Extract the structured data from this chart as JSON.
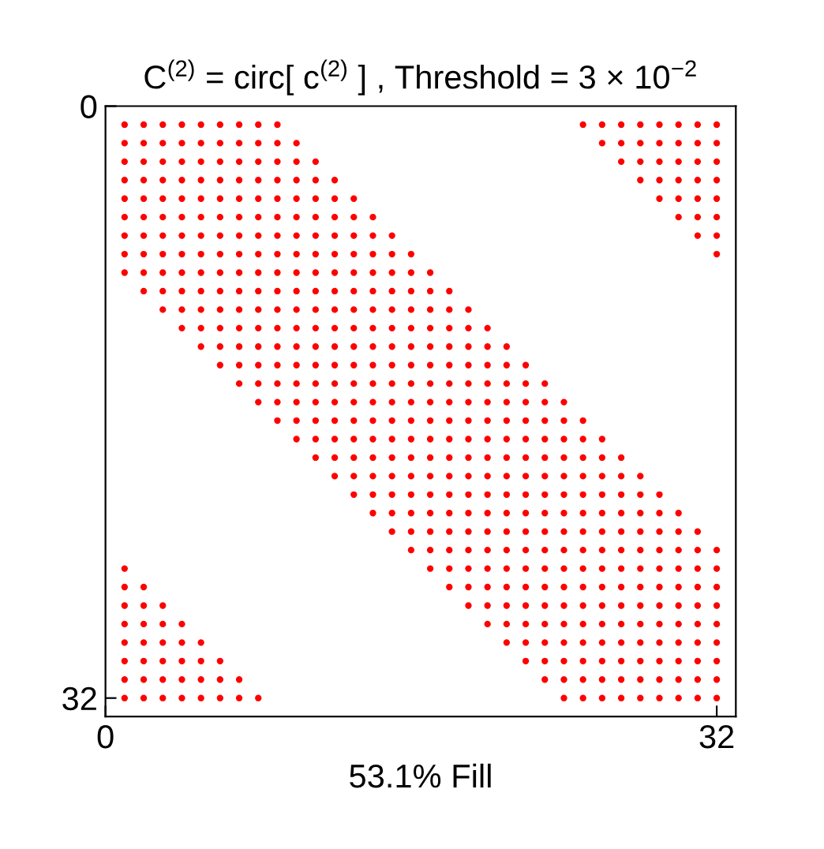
{
  "chart_data": {
    "type": "scatter",
    "title": "C$^{(2)}$ = circ[ c$^{(2)}$ ] , Threshold = 3 × 10$^{−2}$",
    "xlabel": "53.1% Fill",
    "xlim": [
      0,
      33
    ],
    "ylim": [
      33,
      0
    ],
    "xticks": [
      0,
      32
    ],
    "yticks": [
      0,
      32
    ],
    "grid": false,
    "legend": false,
    "marker": "circle",
    "series": [
      {
        "color": "#ff0000",
        "x": [
          1,
          2,
          3,
          4,
          5,
          6,
          7,
          8,
          9,
          25,
          26,
          27,
          28,
          29,
          30,
          31,
          32
        ],
        "values": [
          1,
          1,
          1,
          1,
          1,
          1,
          1,
          1,
          1,
          1,
          1,
          1,
          1,
          1,
          1,
          1,
          1
        ]
      },
      {
        "color": "#ff0000",
        "x": [
          1,
          2,
          3,
          4,
          5,
          6,
          7,
          8,
          9,
          10,
          26,
          27,
          28,
          29,
          30,
          31,
          32
        ],
        "values": [
          2,
          2,
          2,
          2,
          2,
          2,
          2,
          2,
          2,
          2,
          2,
          2,
          2,
          2,
          2,
          2,
          2
        ]
      },
      {
        "color": "#ff0000",
        "x": [
          1,
          2,
          3,
          4,
          5,
          6,
          7,
          8,
          9,
          10,
          11,
          27,
          28,
          29,
          30,
          31,
          32
        ],
        "values": [
          3,
          3,
          3,
          3,
          3,
          3,
          3,
          3,
          3,
          3,
          3,
          3,
          3,
          3,
          3,
          3,
          3
        ]
      },
      {
        "color": "#ff0000",
        "x": [
          1,
          2,
          3,
          4,
          5,
          6,
          7,
          8,
          9,
          10,
          11,
          12,
          28,
          29,
          30,
          31,
          32
        ],
        "values": [
          4,
          4,
          4,
          4,
          4,
          4,
          4,
          4,
          4,
          4,
          4,
          4,
          4,
          4,
          4,
          4,
          4
        ]
      },
      {
        "color": "#ff0000",
        "x": [
          1,
          2,
          3,
          4,
          5,
          6,
          7,
          8,
          9,
          10,
          11,
          12,
          13,
          29,
          30,
          31,
          32
        ],
        "values": [
          5,
          5,
          5,
          5,
          5,
          5,
          5,
          5,
          5,
          5,
          5,
          5,
          5,
          5,
          5,
          5,
          5
        ]
      },
      {
        "color": "#ff0000",
        "x": [
          1,
          2,
          3,
          4,
          5,
          6,
          7,
          8,
          9,
          10,
          11,
          12,
          13,
          14,
          30,
          31,
          32
        ],
        "values": [
          6,
          6,
          6,
          6,
          6,
          6,
          6,
          6,
          6,
          6,
          6,
          6,
          6,
          6,
          6,
          6,
          6
        ]
      },
      {
        "color": "#ff0000",
        "x": [
          1,
          2,
          3,
          4,
          5,
          6,
          7,
          8,
          9,
          10,
          11,
          12,
          13,
          14,
          15,
          31,
          32
        ],
        "values": [
          7,
          7,
          7,
          7,
          7,
          7,
          7,
          7,
          7,
          7,
          7,
          7,
          7,
          7,
          7,
          7,
          7
        ]
      },
      {
        "color": "#ff0000",
        "x": [
          1,
          2,
          3,
          4,
          5,
          6,
          7,
          8,
          9,
          10,
          11,
          12,
          13,
          14,
          15,
          16,
          32
        ],
        "values": [
          8,
          8,
          8,
          8,
          8,
          8,
          8,
          8,
          8,
          8,
          8,
          8,
          8,
          8,
          8,
          8,
          8
        ]
      },
      {
        "color": "#ff0000",
        "x": [
          1,
          2,
          3,
          4,
          5,
          6,
          7,
          8,
          9,
          10,
          11,
          12,
          13,
          14,
          15,
          16,
          17
        ],
        "values": [
          9,
          9,
          9,
          9,
          9,
          9,
          9,
          9,
          9,
          9,
          9,
          9,
          9,
          9,
          9,
          9,
          9
        ]
      },
      {
        "color": "#ff0000",
        "x": [
          2,
          3,
          4,
          5,
          6,
          7,
          8,
          9,
          10,
          11,
          12,
          13,
          14,
          15,
          16,
          17,
          18
        ],
        "values": [
          10,
          10,
          10,
          10,
          10,
          10,
          10,
          10,
          10,
          10,
          10,
          10,
          10,
          10,
          10,
          10,
          10
        ]
      },
      {
        "color": "#ff0000",
        "x": [
          3,
          4,
          5,
          6,
          7,
          8,
          9,
          10,
          11,
          12,
          13,
          14,
          15,
          16,
          17,
          18,
          19
        ],
        "values": [
          11,
          11,
          11,
          11,
          11,
          11,
          11,
          11,
          11,
          11,
          11,
          11,
          11,
          11,
          11,
          11,
          11
        ]
      },
      {
        "color": "#ff0000",
        "x": [
          4,
          5,
          6,
          7,
          8,
          9,
          10,
          11,
          12,
          13,
          14,
          15,
          16,
          17,
          18,
          19,
          20
        ],
        "values": [
          12,
          12,
          12,
          12,
          12,
          12,
          12,
          12,
          12,
          12,
          12,
          12,
          12,
          12,
          12,
          12,
          12
        ]
      },
      {
        "color": "#ff0000",
        "x": [
          5,
          6,
          7,
          8,
          9,
          10,
          11,
          12,
          13,
          14,
          15,
          16,
          17,
          18,
          19,
          20,
          21
        ],
        "values": [
          13,
          13,
          13,
          13,
          13,
          13,
          13,
          13,
          13,
          13,
          13,
          13,
          13,
          13,
          13,
          13,
          13
        ]
      },
      {
        "color": "#ff0000",
        "x": [
          6,
          7,
          8,
          9,
          10,
          11,
          12,
          13,
          14,
          15,
          16,
          17,
          18,
          19,
          20,
          21,
          22
        ],
        "values": [
          14,
          14,
          14,
          14,
          14,
          14,
          14,
          14,
          14,
          14,
          14,
          14,
          14,
          14,
          14,
          14,
          14
        ]
      },
      {
        "color": "#ff0000",
        "x": [
          7,
          8,
          9,
          10,
          11,
          12,
          13,
          14,
          15,
          16,
          17,
          18,
          19,
          20,
          21,
          22,
          23
        ],
        "values": [
          15,
          15,
          15,
          15,
          15,
          15,
          15,
          15,
          15,
          15,
          15,
          15,
          15,
          15,
          15,
          15,
          15
        ]
      },
      {
        "color": "#ff0000",
        "x": [
          8,
          9,
          10,
          11,
          12,
          13,
          14,
          15,
          16,
          17,
          18,
          19,
          20,
          21,
          22,
          23,
          24
        ],
        "values": [
          16,
          16,
          16,
          16,
          16,
          16,
          16,
          16,
          16,
          16,
          16,
          16,
          16,
          16,
          16,
          16,
          16
        ]
      },
      {
        "color": "#ff0000",
        "x": [
          9,
          10,
          11,
          12,
          13,
          14,
          15,
          16,
          17,
          18,
          19,
          20,
          21,
          22,
          23,
          24,
          25
        ],
        "values": [
          17,
          17,
          17,
          17,
          17,
          17,
          17,
          17,
          17,
          17,
          17,
          17,
          17,
          17,
          17,
          17,
          17
        ]
      },
      {
        "color": "#ff0000",
        "x": [
          10,
          11,
          12,
          13,
          14,
          15,
          16,
          17,
          18,
          19,
          20,
          21,
          22,
          23,
          24,
          25,
          26
        ],
        "values": [
          18,
          18,
          18,
          18,
          18,
          18,
          18,
          18,
          18,
          18,
          18,
          18,
          18,
          18,
          18,
          18,
          18
        ]
      },
      {
        "color": "#ff0000",
        "x": [
          11,
          12,
          13,
          14,
          15,
          16,
          17,
          18,
          19,
          20,
          21,
          22,
          23,
          24,
          25,
          26,
          27
        ],
        "values": [
          19,
          19,
          19,
          19,
          19,
          19,
          19,
          19,
          19,
          19,
          19,
          19,
          19,
          19,
          19,
          19,
          19
        ]
      },
      {
        "color": "#ff0000",
        "x": [
          12,
          13,
          14,
          15,
          16,
          17,
          18,
          19,
          20,
          21,
          22,
          23,
          24,
          25,
          26,
          27,
          28
        ],
        "values": [
          20,
          20,
          20,
          20,
          20,
          20,
          20,
          20,
          20,
          20,
          20,
          20,
          20,
          20,
          20,
          20,
          20
        ]
      },
      {
        "color": "#ff0000",
        "x": [
          13,
          14,
          15,
          16,
          17,
          18,
          19,
          20,
          21,
          22,
          23,
          24,
          25,
          26,
          27,
          28,
          29
        ],
        "values": [
          21,
          21,
          21,
          21,
          21,
          21,
          21,
          21,
          21,
          21,
          21,
          21,
          21,
          21,
          21,
          21,
          21
        ]
      },
      {
        "color": "#ff0000",
        "x": [
          14,
          15,
          16,
          17,
          18,
          19,
          20,
          21,
          22,
          23,
          24,
          25,
          26,
          27,
          28,
          29,
          30
        ],
        "values": [
          22,
          22,
          22,
          22,
          22,
          22,
          22,
          22,
          22,
          22,
          22,
          22,
          22,
          22,
          22,
          22,
          22
        ]
      },
      {
        "color": "#ff0000",
        "x": [
          15,
          16,
          17,
          18,
          19,
          20,
          21,
          22,
          23,
          24,
          25,
          26,
          27,
          28,
          29,
          30,
          31
        ],
        "values": [
          23,
          23,
          23,
          23,
          23,
          23,
          23,
          23,
          23,
          23,
          23,
          23,
          23,
          23,
          23,
          23,
          23
        ]
      },
      {
        "color": "#ff0000",
        "x": [
          16,
          17,
          18,
          19,
          20,
          21,
          22,
          23,
          24,
          25,
          26,
          27,
          28,
          29,
          30,
          31,
          32
        ],
        "values": [
          24,
          24,
          24,
          24,
          24,
          24,
          24,
          24,
          24,
          24,
          24,
          24,
          24,
          24,
          24,
          24,
          24
        ]
      },
      {
        "color": "#ff0000",
        "x": [
          1,
          17,
          18,
          19,
          20,
          21,
          22,
          23,
          24,
          25,
          26,
          27,
          28,
          29,
          30,
          31,
          32
        ],
        "values": [
          25,
          25,
          25,
          25,
          25,
          25,
          25,
          25,
          25,
          25,
          25,
          25,
          25,
          25,
          25,
          25,
          25
        ]
      },
      {
        "color": "#ff0000",
        "x": [
          1,
          2,
          18,
          19,
          20,
          21,
          22,
          23,
          24,
          25,
          26,
          27,
          28,
          29,
          30,
          31,
          32
        ],
        "values": [
          26,
          26,
          26,
          26,
          26,
          26,
          26,
          26,
          26,
          26,
          26,
          26,
          26,
          26,
          26,
          26,
          26
        ]
      },
      {
        "color": "#ff0000",
        "x": [
          1,
          2,
          3,
          19,
          20,
          21,
          22,
          23,
          24,
          25,
          26,
          27,
          28,
          29,
          30,
          31,
          32
        ],
        "values": [
          27,
          27,
          27,
          27,
          27,
          27,
          27,
          27,
          27,
          27,
          27,
          27,
          27,
          27,
          27,
          27,
          27
        ]
      },
      {
        "color": "#ff0000",
        "x": [
          1,
          2,
          3,
          4,
          20,
          21,
          22,
          23,
          24,
          25,
          26,
          27,
          28,
          29,
          30,
          31,
          32
        ],
        "values": [
          28,
          28,
          28,
          28,
          28,
          28,
          28,
          28,
          28,
          28,
          28,
          28,
          28,
          28,
          28,
          28,
          28
        ]
      },
      {
        "color": "#ff0000",
        "x": [
          1,
          2,
          3,
          4,
          5,
          21,
          22,
          23,
          24,
          25,
          26,
          27,
          28,
          29,
          30,
          31,
          32
        ],
        "values": [
          29,
          29,
          29,
          29,
          29,
          29,
          29,
          29,
          29,
          29,
          29,
          29,
          29,
          29,
          29,
          29,
          29
        ]
      },
      {
        "color": "#ff0000",
        "x": [
          1,
          2,
          3,
          4,
          5,
          6,
          22,
          23,
          24,
          25,
          26,
          27,
          28,
          29,
          30,
          31,
          32
        ],
        "values": [
          30,
          30,
          30,
          30,
          30,
          30,
          30,
          30,
          30,
          30,
          30,
          30,
          30,
          30,
          30,
          30,
          30
        ]
      },
      {
        "color": "#ff0000",
        "x": [
          1,
          2,
          3,
          4,
          5,
          6,
          7,
          23,
          24,
          25,
          26,
          27,
          28,
          29,
          30,
          31,
          32
        ],
        "values": [
          31,
          31,
          31,
          31,
          31,
          31,
          31,
          31,
          31,
          31,
          31,
          31,
          31,
          31,
          31,
          31,
          31
        ]
      },
      {
        "color": "#ff0000",
        "x": [
          1,
          2,
          3,
          4,
          5,
          6,
          7,
          8,
          24,
          25,
          26,
          27,
          28,
          29,
          30,
          31,
          32
        ],
        "values": [
          32,
          32,
          32,
          32,
          32,
          32,
          32,
          32,
          32,
          32,
          32,
          32,
          32,
          32,
          32,
          32,
          32
        ]
      }
    ]
  }
}
